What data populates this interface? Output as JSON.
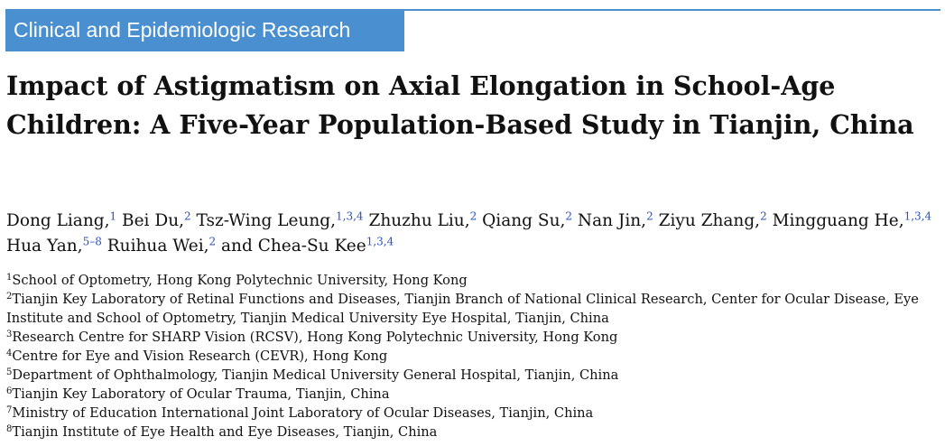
{
  "category": "Clinical and Epidemiologic Research",
  "title": "Impact of Astigmatism on Axial Elongation in School-Age Children: A Five-Year Population-Based Study in Tianjin, China",
  "authors": [
    {
      "name": "Dong Liang,",
      "sup": "1"
    },
    {
      "name": "Bei Du,",
      "sup": "2"
    },
    {
      "name": "Tsz-Wing Leung,",
      "sup": "1,3,4"
    },
    {
      "name": "Zhuzhu Liu,",
      "sup": "2"
    },
    {
      "name": "Qiang Su,",
      "sup": "2"
    },
    {
      "name": "Nan Jin,",
      "sup": "2"
    },
    {
      "name": "Ziyu Zhang,",
      "sup": "2"
    },
    {
      "name": "Mingguang He,",
      "sup": "1,3,4"
    },
    {
      "name": "Hua Yan,",
      "sup": "5–8"
    },
    {
      "name": "Ruihua Wei,",
      "sup": "2"
    },
    {
      "name": "and Chea-Su Kee",
      "sup": "1,3,4"
    }
  ],
  "affiliations": [
    {
      "num": "1",
      "text": "School of Optometry, Hong Kong Polytechnic University, Hong Kong"
    },
    {
      "num": "2",
      "text": "Tianjin Key Laboratory of Retinal Functions and Diseases, Tianjin Branch of National Clinical Research, Center for Ocular Disease, Eye Institute and School of Optometry, Tianjin Medical University Eye Hospital, Tianjin, China"
    },
    {
      "num": "3",
      "text": "Research Centre for SHARP Vision (RCSV), Hong Kong Polytechnic University, Hong Kong"
    },
    {
      "num": "4",
      "text": "Centre for Eye and Vision Research (CEVR), Hong Kong"
    },
    {
      "num": "5",
      "text": "Department of Ophthalmology, Tianjin Medical University General Hospital, Tianjin, China"
    },
    {
      "num": "6",
      "text": "Tianjin Key Laboratory of Ocular Trauma, Tianjin, China"
    },
    {
      "num": "7",
      "text": "Ministry of Education International Joint Laboratory of Ocular Diseases, Tianjin, China"
    },
    {
      "num": "8",
      "text": "Tianjin Institute of Eye Health and Eye Diseases, Tianjin, China"
    }
  ],
  "colors": {
    "banner": "#4a8fcf",
    "superscript": "#2a52be"
  }
}
